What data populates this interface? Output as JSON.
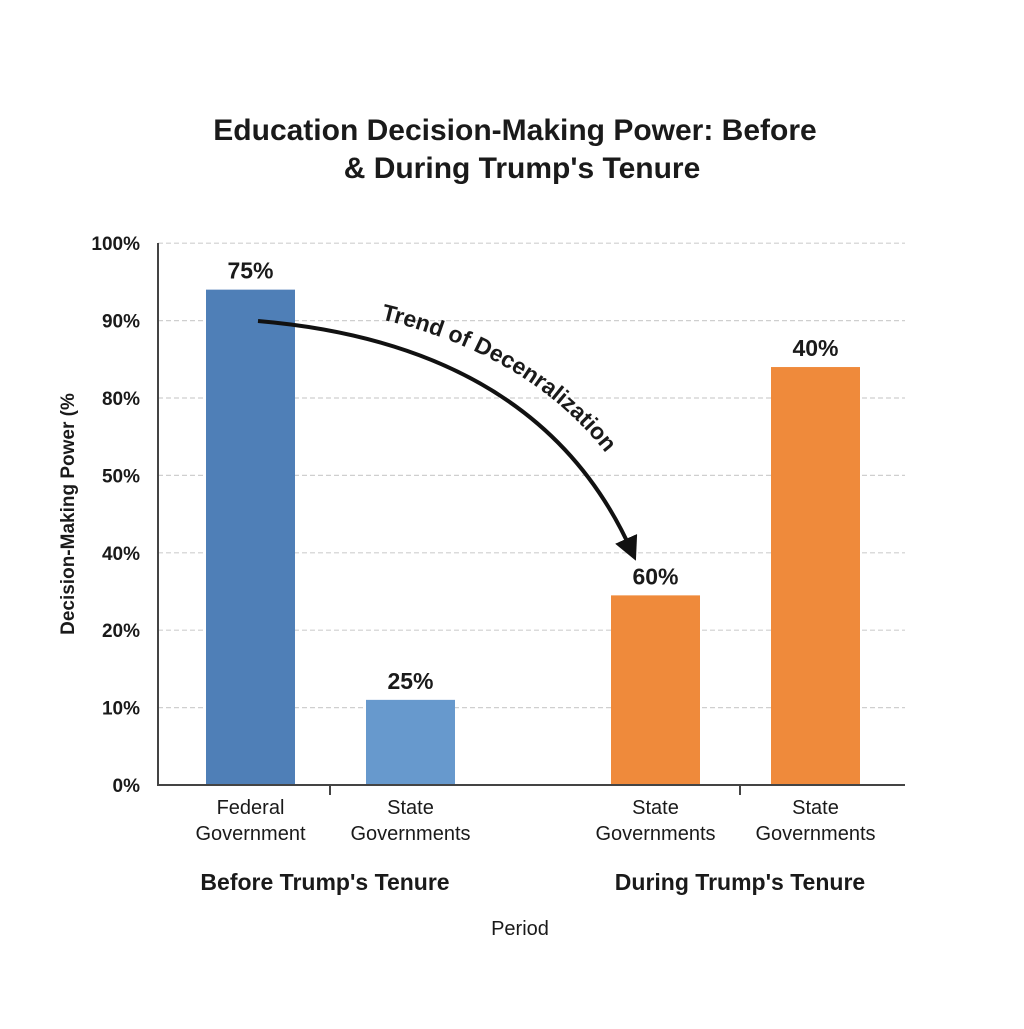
{
  "chart_data": {
    "type": "bar",
    "title_lines": [
      "Education Decision-Making Power: Before",
      "& During Trump's Tenure"
    ],
    "xlabel": "Period",
    "ylabel": "Decision-Making Power (%",
    "y_ticks": [
      "0%",
      "10%",
      "20%",
      "40%",
      "50%",
      "80%",
      "90%",
      "100%"
    ],
    "y_tick_values": [
      0,
      10,
      20,
      40,
      50,
      80,
      90,
      100
    ],
    "ylim": [
      0,
      100
    ],
    "grid": true,
    "groups": [
      {
        "label": "Before Trump's Tenure",
        "bars": [
          0,
          1
        ]
      },
      {
        "label": "During Trump's Tenure",
        "bars": [
          2,
          3
        ]
      }
    ],
    "bars": [
      {
        "category": [
          "Federal",
          "Government"
        ],
        "data_label": "75%",
        "value": 75,
        "axis_level": 94,
        "color": "#4f7fb7"
      },
      {
        "category": [
          "State",
          "Governments"
        ],
        "data_label": "25%",
        "value": 25,
        "axis_level": 11,
        "color": "#6799cd"
      },
      {
        "category": [
          "State",
          "Governments"
        ],
        "data_label": "60%",
        "value": 60,
        "axis_level": 29,
        "color": "#ef8a3b"
      },
      {
        "category": [
          "State",
          "Governments"
        ],
        "data_label": "40%",
        "value": 40,
        "axis_level": 84,
        "color": "#ef8a3b"
      }
    ],
    "annotation": {
      "text": "Trend of Decenralization",
      "type": "curved-arrow",
      "from_bar": 0,
      "to_bar": 2
    }
  }
}
